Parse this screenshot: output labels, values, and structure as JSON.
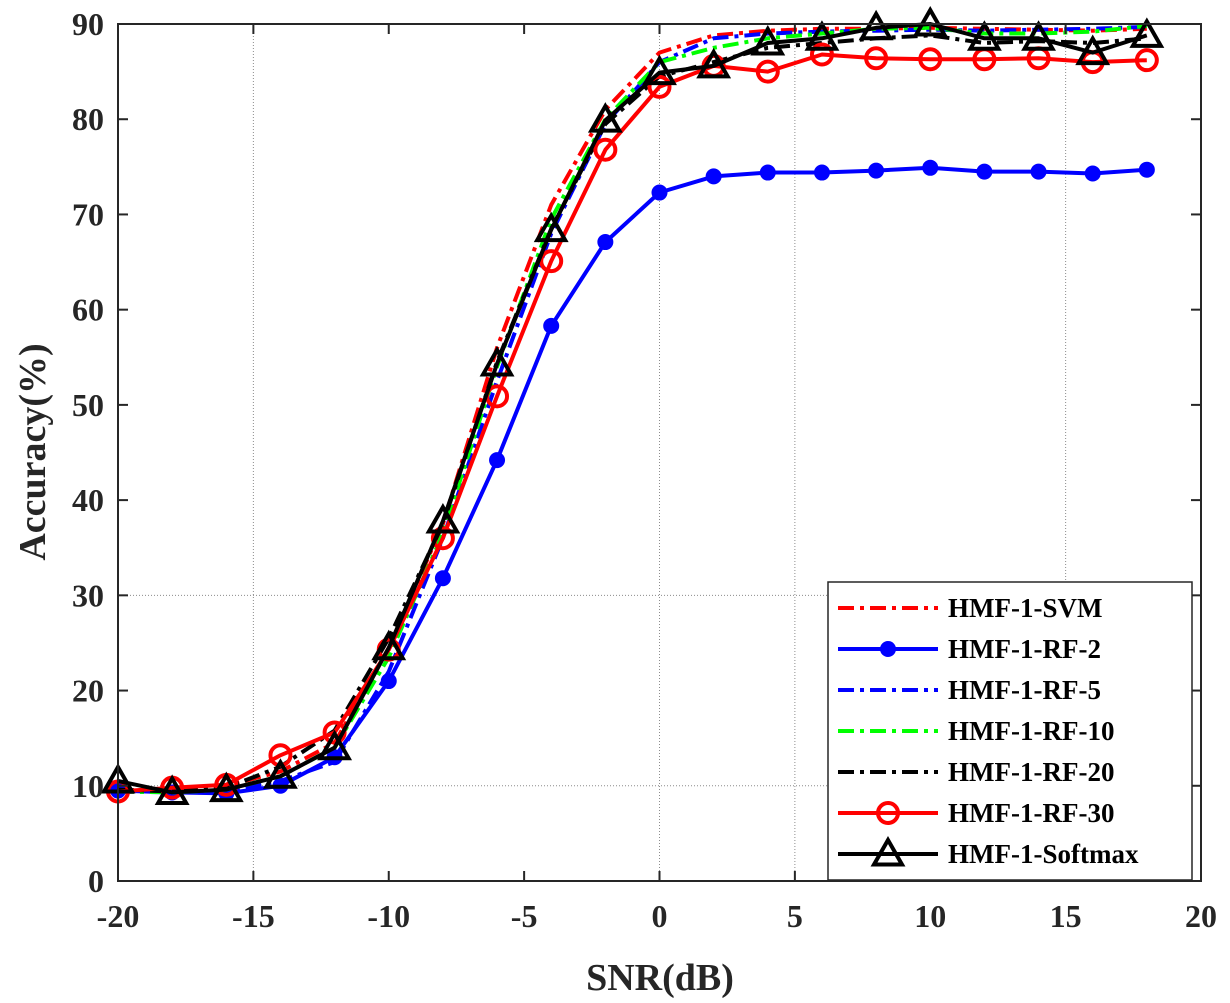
{
  "chart_data": {
    "type": "line",
    "title": "",
    "xlabel": "SNR(dB)",
    "ylabel": "Accuracy(%)",
    "xlim": [
      -20,
      20
    ],
    "ylim": [
      0,
      90
    ],
    "xticks": [
      -20,
      -15,
      -10,
      -5,
      0,
      5,
      10,
      15,
      20
    ],
    "yticks": [
      0,
      10,
      20,
      30,
      40,
      50,
      60,
      70,
      80,
      90
    ],
    "xtick_labels": [
      "-20",
      "-15",
      "-10",
      "-5",
      "0",
      "5",
      "10",
      "15",
      "20"
    ],
    "ytick_labels": [
      "0",
      "10",
      "20",
      "30",
      "40",
      "50",
      "60",
      "70",
      "80",
      "90"
    ],
    "legend_position": "bottom-right",
    "x": [
      -20,
      -18,
      -16,
      -14,
      -12,
      -10,
      -8,
      -6,
      -4,
      -2,
      0,
      2,
      4,
      6,
      8,
      10,
      12,
      14,
      16,
      18
    ],
    "series": [
      {
        "name": "HMF-1-SVM",
        "color": "#ff0000",
        "dash": "dashdot",
        "marker": "none",
        "values": [
          9.3,
          9.5,
          10.0,
          11.5,
          14.5,
          24.5,
          37.5,
          56.0,
          71.0,
          81.0,
          87.0,
          88.8,
          89.3,
          89.5,
          89.5,
          89.6,
          89.5,
          89.4,
          89.3,
          89.5
        ]
      },
      {
        "name": "HMF-1-RF-2",
        "color": "#0000ff",
        "dash": "solid",
        "marker": "dot",
        "values": [
          9.5,
          9.3,
          9.2,
          10.0,
          13.0,
          21.0,
          31.8,
          44.2,
          58.3,
          67.1,
          72.3,
          74.0,
          74.4,
          74.4,
          74.6,
          74.9,
          74.5,
          74.5,
          74.3,
          74.7
        ]
      },
      {
        "name": "HMF-1-RF-5",
        "color": "#0000ff",
        "dash": "dashdot",
        "marker": "none",
        "values": [
          9.4,
          9.3,
          9.4,
          10.5,
          12.5,
          22.0,
          36.0,
          52.5,
          68.0,
          79.5,
          86.0,
          88.5,
          89.0,
          89.2,
          89.3,
          89.4,
          89.3,
          89.4,
          89.5,
          89.7
        ]
      },
      {
        "name": "HMF-1-RF-10",
        "color": "#00ff00",
        "dash": "dashdot",
        "marker": "none",
        "values": [
          9.4,
          9.3,
          9.6,
          11.0,
          14.0,
          23.5,
          36.5,
          54.0,
          69.5,
          80.0,
          86.0,
          87.5,
          88.5,
          89.0,
          89.5,
          89.6,
          89.0,
          89.0,
          89.2,
          89.8
        ]
      },
      {
        "name": "HMF-1-RF-20",
        "color": "#000000",
        "dash": "dashdot",
        "marker": "none",
        "values": [
          9.6,
          9.4,
          9.8,
          12.0,
          15.8,
          25.5,
          37.5,
          54.5,
          68.5,
          79.5,
          84.5,
          86.0,
          87.5,
          88.0,
          88.5,
          88.8,
          88.0,
          88.2,
          88.0,
          88.5
        ]
      },
      {
        "name": "HMF-1-RF-30",
        "color": "#ff0000",
        "dash": "solid",
        "marker": "circle",
        "values": [
          9.4,
          9.8,
          10.1,
          13.2,
          15.6,
          24.3,
          36.0,
          50.9,
          65.1,
          76.8,
          83.4,
          85.6,
          85.0,
          86.8,
          86.4,
          86.3,
          86.3,
          86.4,
          86.0,
          86.2
        ]
      },
      {
        "name": "HMF-1-Softmax",
        "color": "#000000",
        "dash": "solid",
        "marker": "triangle",
        "values": [
          10.5,
          9.3,
          9.6,
          11.0,
          14.0,
          24.5,
          37.8,
          54.3,
          68.4,
          79.9,
          84.9,
          85.6,
          88.0,
          88.5,
          89.6,
          90.0,
          88.5,
          88.5,
          87.0,
          88.8
        ]
      }
    ],
    "grid_lines": {
      "vertical_at_x": [
        -15,
        0,
        5,
        15
      ],
      "horizontal_at_y": [
        10,
        30
      ]
    }
  }
}
